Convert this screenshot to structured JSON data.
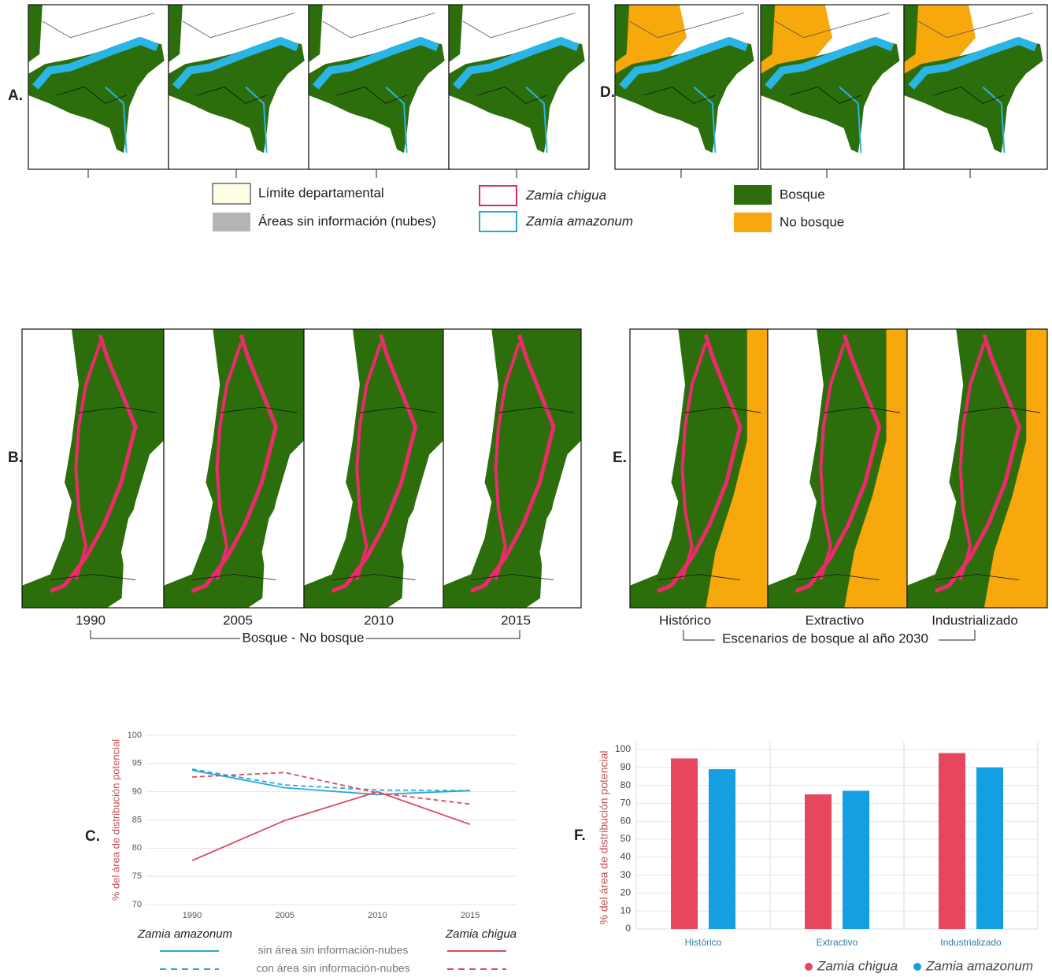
{
  "panel_labels": [
    "A.",
    "B.",
    "C.",
    "D.",
    "E.",
    "F."
  ],
  "map_legend": [
    "Límite departamental",
    "Áreas sin información (nubes)",
    "Zamia chigua",
    "Zamia amazonum",
    "Bosque",
    "No bosque"
  ],
  "map_years": [
    "1990",
    "2005",
    "2010",
    "2015"
  ],
  "map_years_caption": "Bosque - No bosque",
  "scenarios": [
    "Histórico",
    "Extractivo",
    "Industrializado"
  ],
  "scenarios_caption": "Escenarios de bosque al año 2030",
  "chart_data": [
    {
      "type": "line",
      "y_label": "% del área de distribución potencial",
      "categories": [
        "1990",
        "2005",
        "2010",
        "2015"
      ],
      "series": [
        {
          "color": "#2aa7d6",
          "dashed": false,
          "values": [
            93.8,
            90.7,
            89.5,
            90.2
          ]
        },
        {
          "color": "#2aa7d6",
          "dashed": true,
          "values": [
            94.0,
            91.2,
            90.3,
            90.2
          ]
        },
        {
          "color": "#d94a63",
          "dashed": false,
          "values": [
            77.8,
            84.9,
            90.0,
            84.2
          ]
        },
        {
          "color": "#d94a63",
          "dashed": true,
          "values": [
            92.6,
            93.4,
            89.8,
            87.8
          ]
        }
      ],
      "legend": {
        "groups": [
          "Zamia amazonum",
          "Zamia chigua"
        ],
        "styles": [
          "sin área sin información-nubes",
          "con área sin información-nubes"
        ]
      },
      "ylim": [
        70,
        100
      ],
      "yticks": [
        70,
        75,
        80,
        85,
        90,
        95,
        100
      ],
      "grid": true
    },
    {
      "type": "bar",
      "y_label": "% del área de distribución potencial",
      "categories": [
        "Histórico",
        "Extractivo",
        "Industrializado"
      ],
      "series": [
        {
          "name": "Zamia chigua",
          "color": "#e6475e",
          "values": [
            95,
            75,
            98
          ]
        },
        {
          "name": "Zamia amazonum",
          "color": "#139fe2",
          "values": [
            89,
            77,
            90
          ]
        }
      ],
      "ylim": [
        0,
        100
      ],
      "yticks": [
        0,
        10,
        20,
        30,
        40,
        50,
        60,
        70,
        80,
        90,
        100
      ],
      "grid": true
    }
  ]
}
